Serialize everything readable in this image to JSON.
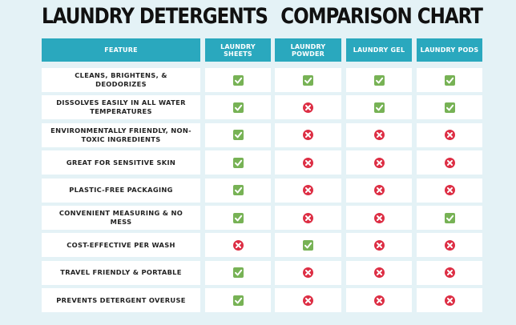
{
  "header": {
    "title": "LAUNDRY DETERGENTS",
    "subtitle": "COMPARISON CHART"
  },
  "table": {
    "columns": [
      "FEATURE",
      "LAUNDRY SHEETS",
      "LAUNDRY POWDER",
      "LAUNDRY GEL",
      "LAUNDRY PODS"
    ],
    "rows": [
      [
        "CLEANS, BRIGHTENS, & DEODORIZES",
        true,
        true,
        true,
        true
      ],
      [
        "DISSOLVES EASILY IN ALL WATER TEMPERATURES",
        true,
        false,
        true,
        true
      ],
      [
        "ENVIRONMENTALLY FRIENDLY, NON-TOXIC INGREDIENTS",
        true,
        false,
        false,
        false
      ],
      [
        "GREAT FOR SENSITIVE SKIN",
        true,
        false,
        false,
        false
      ],
      [
        "PLASTIC-FREE PACKAGING",
        true,
        false,
        false,
        false
      ],
      [
        "CONVENIENT MEASURING & NO MESS",
        true,
        false,
        false,
        true
      ],
      [
        "COST-EFFECTIVE PER WASH",
        false,
        true,
        false,
        false
      ],
      [
        "TRAVEL FRIENDLY & PORTABLE",
        true,
        false,
        false,
        false
      ],
      [
        "PREVENTS DETERGENT OVERUSE",
        true,
        false,
        false,
        false
      ]
    ]
  }
}
